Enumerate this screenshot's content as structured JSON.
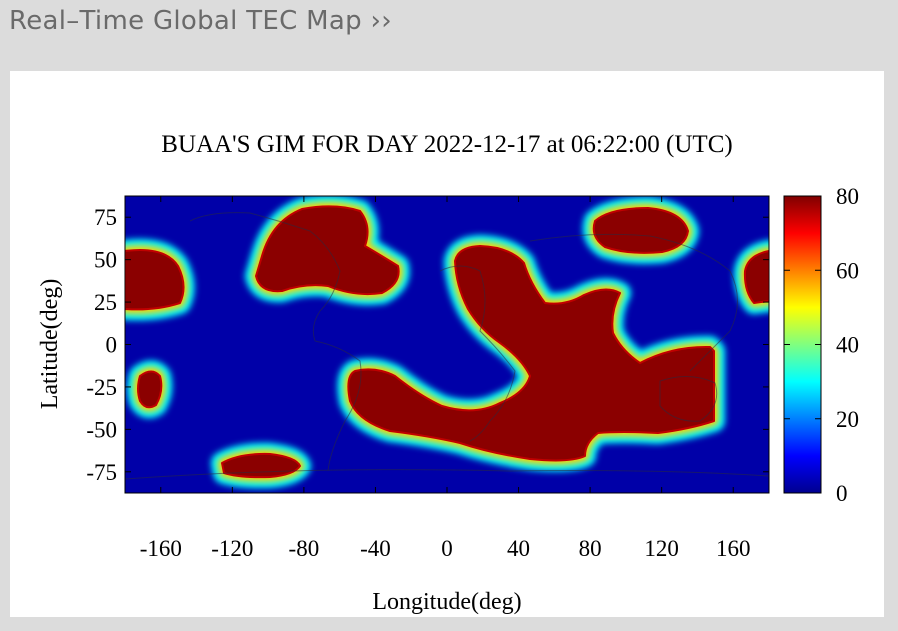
{
  "header": {
    "link_label": "Real–Time Global TEC Map ››"
  },
  "chart_data": {
    "type": "heatmap",
    "title": "BUAA'S GIM FOR DAY 2022-12-17 at 06:22:00 (UTC)",
    "xlabel": "Longitude(deg)",
    "ylabel": "Latitude(deg)",
    "xlim": [
      -180,
      180
    ],
    "ylim": [
      -87.5,
      87.5
    ],
    "x_ticks": [
      -160,
      -120,
      -80,
      -40,
      0,
      40,
      80,
      120,
      160
    ],
    "y_ticks": [
      75,
      50,
      25,
      0,
      -25,
      -50,
      -75
    ],
    "colorbar": {
      "range": [
        0,
        80
      ],
      "ticks": [
        0,
        20,
        40,
        60,
        80
      ],
      "colormap": [
        "#00008f",
        "#0000ff",
        "#00ffff",
        "#ffff00",
        "#ff0000",
        "#800000"
      ]
    },
    "background_color": "#0000a8",
    "high_tec_regions": [
      {
        "id": "north-america-west",
        "lon": [
          -145,
          -50
        ],
        "lat": [
          42,
          85
        ],
        "value": 80
      },
      {
        "id": "pacific-east-edge",
        "lon": [
          -180,
          -165
        ],
        "lat": [
          28,
          55
        ],
        "value": 80
      },
      {
        "id": "asia-east-edge",
        "lon": [
          168,
          180
        ],
        "lat": [
          28,
          55
        ],
        "value": 80
      },
      {
        "id": "siberia-north",
        "lon": [
          80,
          135
        ],
        "lat": [
          58,
          85
        ],
        "value": 80
      },
      {
        "id": "equatorial-band",
        "lon": [
          -50,
          148
        ],
        "lat": [
          -70,
          60
        ],
        "value": 80
      },
      {
        "id": "south-pacific-spot",
        "lon": [
          -175,
          -160
        ],
        "lat": [
          -38,
          -18
        ],
        "value": 80
      },
      {
        "id": "antarctic-spot",
        "lon": [
          -128,
          -85
        ],
        "lat": [
          -78,
          -62
        ],
        "value": 80
      }
    ]
  }
}
